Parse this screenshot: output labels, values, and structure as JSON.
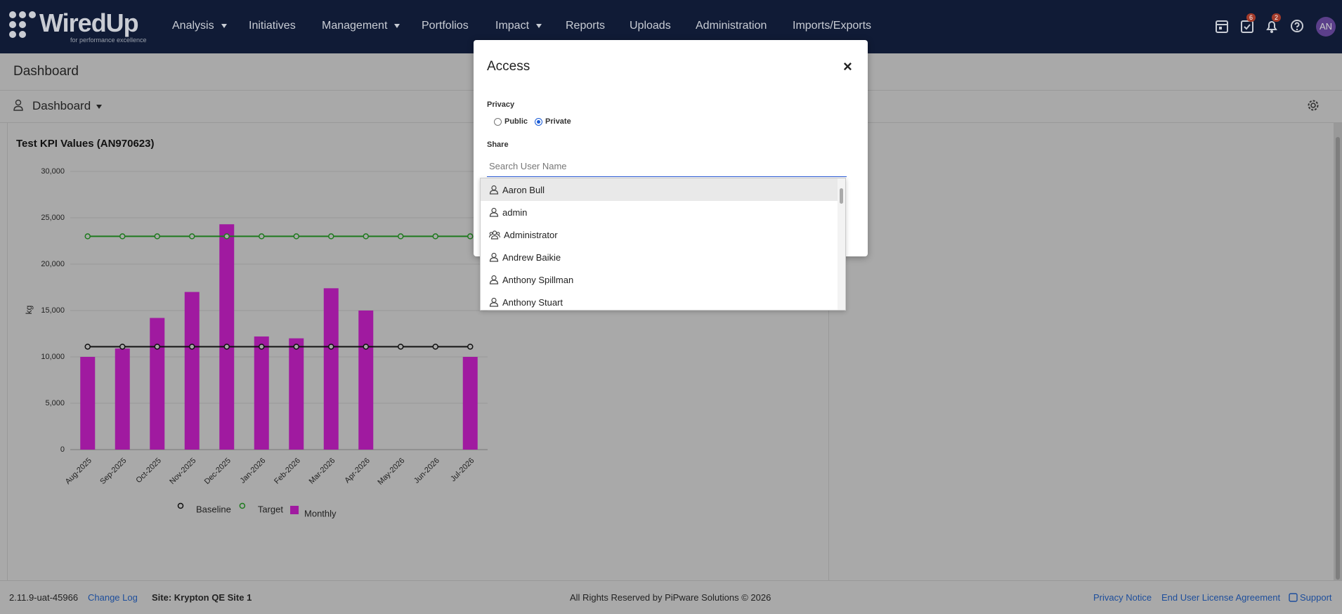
{
  "nav": {
    "brand": "WiredUp",
    "tagline": "for performance excellence",
    "items": [
      {
        "label": "Analysis",
        "menu": true
      },
      {
        "label": "Initiatives",
        "menu": false
      },
      {
        "label": "Management",
        "menu": true
      },
      {
        "label": "Portfolios",
        "menu": false
      },
      {
        "label": "Impact",
        "menu": true
      },
      {
        "label": "Reports",
        "menu": false
      },
      {
        "label": "Uploads",
        "menu": false
      },
      {
        "label": "Administration",
        "menu": false
      },
      {
        "label": "Imports/Exports",
        "menu": false
      }
    ],
    "badges": [
      "6",
      "2"
    ],
    "avatar": "AN"
  },
  "page": {
    "title": "Dashboard",
    "selector": "Dashboard"
  },
  "widget": {
    "chart_data": {
      "type": "bar",
      "title": "Test KPI Values (AN970623)",
      "y_label": "kg",
      "categories": [
        "Aug-2025",
        "Sep-2025",
        "Oct-2025",
        "Nov-2025",
        "Dec-2025",
        "Jan-2026",
        "Feb-2026",
        "Mar-2026",
        "Apr-2026",
        "May-2026",
        "Jun-2026",
        "Jul-2026"
      ],
      "series": [
        {
          "name": "Baseline",
          "mark": "line",
          "color": "#111111",
          "values": [
            11100,
            11100,
            11100,
            11100,
            11100,
            11100,
            11100,
            11100,
            11100,
            11100,
            11100,
            11100
          ]
        },
        {
          "name": "Target",
          "mark": "line",
          "color": "#1e7a1e",
          "values": [
            23000,
            23000,
            23000,
            23000,
            23000,
            23000,
            23000,
            23000,
            23000,
            23000,
            23000,
            23000
          ]
        },
        {
          "name": "Monthly",
          "mark": "bar",
          "color": "#a01aa0",
          "values": [
            10000,
            10900,
            14200,
            17000,
            24300,
            12200,
            12000,
            17400,
            15000,
            null,
            null,
            10000
          ]
        }
      ],
      "ylim": [
        0,
        30000
      ],
      "yticks": [
        0,
        {
          "value": 5000,
          "label": "5,000"
        },
        {
          "value": 10000,
          "label": "10,000"
        },
        {
          "value": 15000,
          "label": "15,000"
        },
        {
          "value": 20000,
          "label": "20,000"
        },
        {
          "value": 25000,
          "label": "25,000"
        },
        {
          "value": 30000,
          "label": "30,000"
        }
      ],
      "grid": true
    }
  },
  "modal": {
    "title": "Access",
    "close": "×",
    "privacy_label": "Privacy",
    "options": [
      "Public",
      "Private"
    ],
    "selected": "Private",
    "share_label": "Share",
    "search_placeholder": "Search User Name",
    "users": [
      {
        "name": "Aaron Bull",
        "kind": "user"
      },
      {
        "name": "admin",
        "kind": "user"
      },
      {
        "name": "Administrator",
        "kind": "group"
      },
      {
        "name": "Andrew Baikie",
        "kind": "user"
      },
      {
        "name": "Anthony Spillman",
        "kind": "user"
      },
      {
        "name": "Anthony Stuart",
        "kind": "user"
      }
    ]
  },
  "footer": {
    "version": "2.11.9-uat-45966",
    "changelog": "Change Log",
    "site": "Site: Krypton QE Site 1",
    "rights": "All Rights Reserved by PiPware Solutions © 2026",
    "links": [
      "Privacy Notice",
      "End User License Agreement",
      "Support"
    ]
  }
}
